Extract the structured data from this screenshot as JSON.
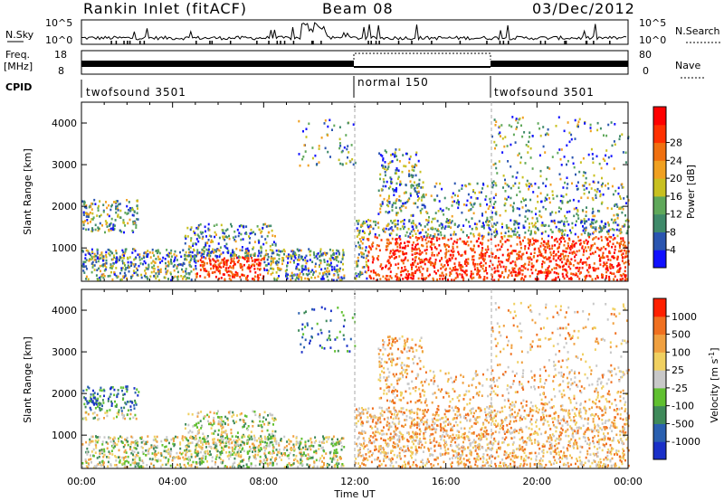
{
  "header": {
    "title_left": "Rankin Inlet (fitACF)",
    "title_center": "Beam 08",
    "title_right": "03/Dec/2012"
  },
  "noise_panel": {
    "left_label": "N.Sky",
    "right_label": "N.Search",
    "ticks_left": [
      "10^5",
      "10^0"
    ],
    "ticks_right": [
      "10^5",
      "10^0"
    ]
  },
  "freq_panel": {
    "left_label_1": "Freq.",
    "left_label_2": "[MHz]",
    "right_label": "Nave",
    "ticks_left": [
      "18",
      "8"
    ],
    "ticks_right": [
      "80",
      "0"
    ]
  },
  "cpid": {
    "label": "CPID",
    "modes": [
      {
        "name": "twofsound 3501",
        "start_hour": 0
      },
      {
        "name": "normal 150",
        "start_hour": 12
      },
      {
        "name": "twofsound 3501",
        "start_hour": 18
      }
    ]
  },
  "chart_data": [
    {
      "type": "heatmap",
      "quantity": "Power",
      "ylabel": "Slant Range [km]",
      "xlabel": "Time UT",
      "ylim": [
        200,
        4500
      ],
      "xlim_hours": [
        0,
        24
      ],
      "y_ticks": [
        1000,
        2000,
        3000,
        4000
      ],
      "x_tick_labels": [
        "00:00",
        "04:00",
        "08:00",
        "12:00",
        "16:00",
        "20:00",
        "00:00"
      ],
      "colorbar": {
        "label": "Power [dB]",
        "ticks": [
          4,
          8,
          12,
          16,
          20,
          24,
          28
        ],
        "range": [
          0,
          32
        ],
        "colors": [
          "#1010ff",
          "#2a55b0",
          "#3f8a6a",
          "#5fa85a",
          "#c8c020",
          "#f0a020",
          "#f07010",
          "#ff3000",
          "#ff0000"
        ]
      }
    },
    {
      "type": "heatmap",
      "quantity": "Velocity",
      "ylabel": "Slant Range [km]",
      "xlabel": "Time UT",
      "ylim": [
        200,
        4500
      ],
      "xlim_hours": [
        0,
        24
      ],
      "y_ticks": [
        1000,
        2000,
        3000,
        4000
      ],
      "x_tick_labels": [
        "00:00",
        "04:00",
        "08:00",
        "12:00",
        "16:00",
        "20:00",
        "00:00"
      ],
      "colorbar": {
        "label": "Velocity [m s",
        "label_sup": "-1",
        "label_end": "]",
        "ticks": [
          "1000",
          "500",
          "100",
          "25",
          "-25",
          "-100",
          "-500",
          "-1000"
        ],
        "colors": [
          "#1a30c8",
          "#2a60b0",
          "#3f8a5a",
          "#60c030",
          "#c8c8c8",
          "#f0d060",
          "#f0a040",
          "#f07020",
          "#ff2000"
        ]
      }
    }
  ]
}
